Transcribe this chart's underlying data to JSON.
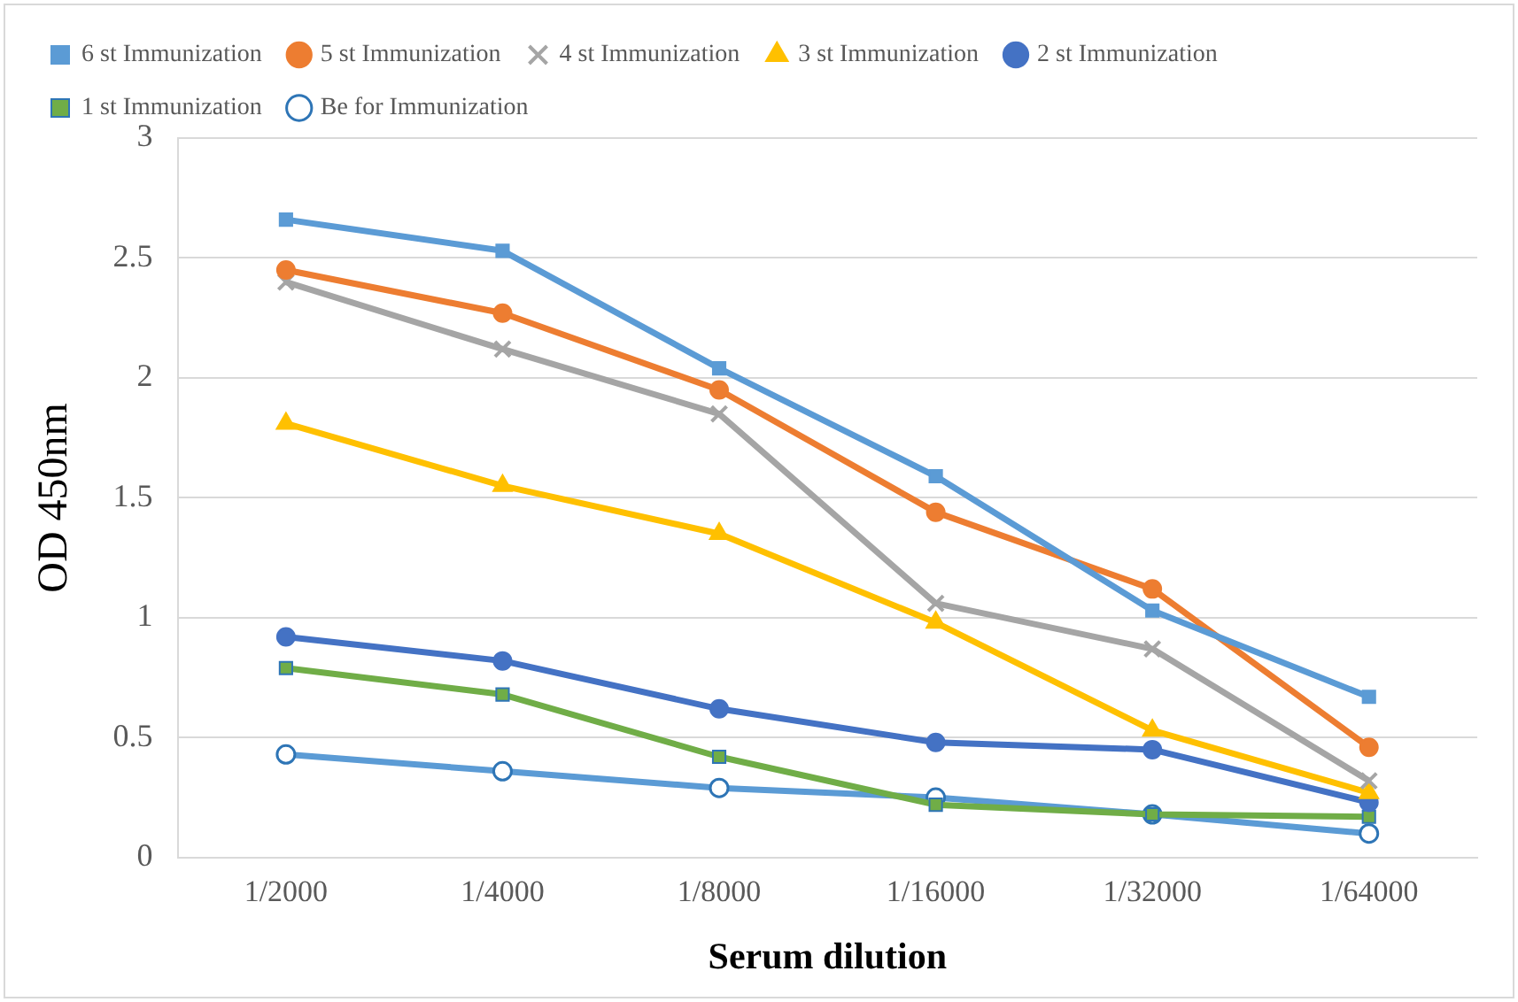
{
  "chart_data": {
    "type": "line",
    "xlabel": "Serum dilution",
    "ylabel": "OD 450nm",
    "categories": [
      "1/2000",
      "1/4000",
      "1/8000",
      "1/16000",
      "1/32000",
      "1/64000"
    ],
    "ylim": [
      0,
      3
    ],
    "yticks": [
      0,
      0.5,
      1,
      1.5,
      2,
      2.5,
      3
    ],
    "grid": "y",
    "legend": "top",
    "line_style": "solid",
    "series": [
      {
        "name": "6 st Immunization",
        "color": "#5b9bd5",
        "marker": "square",
        "values": [
          2.66,
          2.53,
          2.04,
          1.59,
          1.03,
          0.67
        ]
      },
      {
        "name": "5 st Immunization",
        "color": "#ed7d31",
        "marker": "circle",
        "values": [
          2.45,
          2.27,
          1.95,
          1.44,
          1.12,
          0.46
        ]
      },
      {
        "name": "4 st Immunization",
        "color": "#a5a5a5",
        "marker": "cross",
        "values": [
          2.4,
          2.12,
          1.85,
          1.06,
          0.87,
          0.32
        ]
      },
      {
        "name": "3 st Immunization",
        "color": "#ffc000",
        "marker": "triangle",
        "values": [
          1.81,
          1.55,
          1.35,
          0.98,
          0.53,
          0.27
        ]
      },
      {
        "name": "2 st Immunization",
        "color": "#4472c4",
        "marker": "circle",
        "values": [
          0.92,
          0.82,
          0.62,
          0.48,
          0.45,
          0.23
        ]
      },
      {
        "name": "1 st Immunization",
        "color": "#70ad47",
        "marker": "square",
        "values": [
          0.79,
          0.68,
          0.42,
          0.22,
          0.18,
          0.17
        ]
      },
      {
        "name": "Be for Immunization",
        "color": "#5b9bd5",
        "marker": "circle",
        "values": [
          0.43,
          0.36,
          0.29,
          0.25,
          0.18,
          0.1
        ]
      }
    ]
  }
}
